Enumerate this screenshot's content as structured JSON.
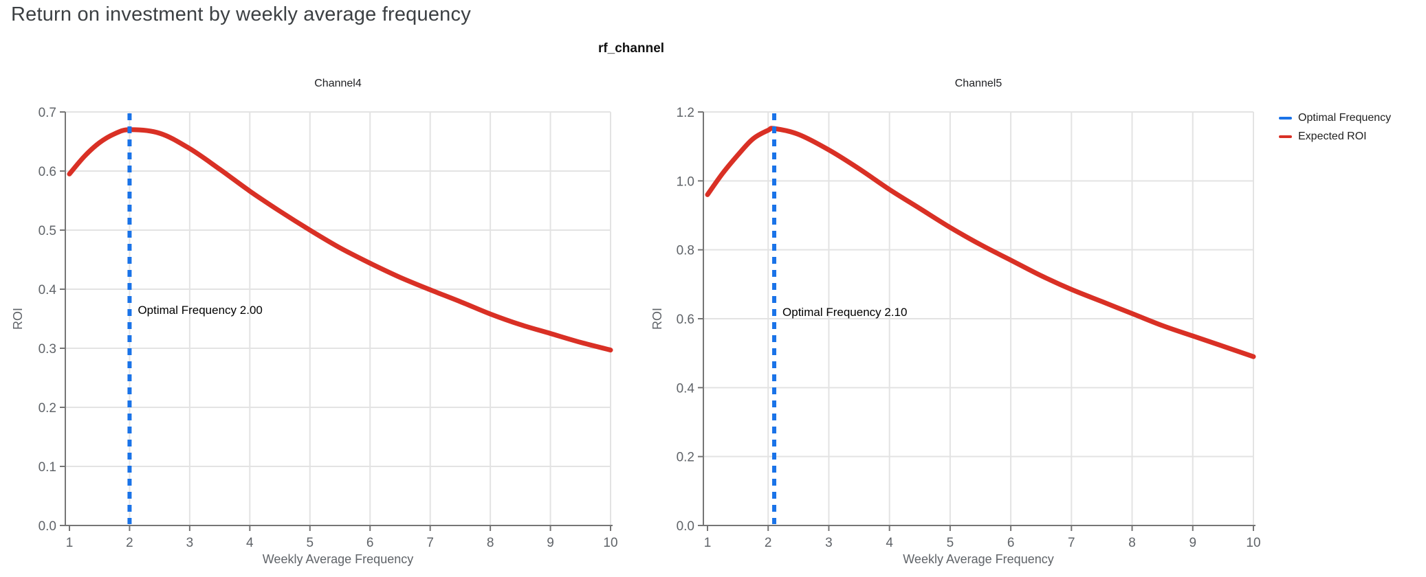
{
  "page": {
    "title": "Return on investment by weekly average frequency",
    "facet_title": "rf_channel"
  },
  "legend": {
    "items": [
      {
        "label": "Optimal Frequency",
        "color": "#1a73e8"
      },
      {
        "label": "Expected ROI",
        "color": "#d93025"
      }
    ]
  },
  "colors": {
    "curve_red": "#d93025",
    "optimal_blue": "#1a73e8",
    "grid": "#e3e3e3",
    "axis": "#757575",
    "tick_text": "#5f6368",
    "title_text": "#3c4043",
    "annotation_text": "#000000",
    "chart_title_text": "#202124"
  },
  "chart_data": [
    {
      "type": "line",
      "title": "Channel4",
      "xlabel": "Weekly Average Frequency",
      "ylabel": "ROI",
      "xlim": [
        1,
        10
      ],
      "ylim": [
        0,
        0.7
      ],
      "xticks": [
        1,
        2,
        3,
        4,
        5,
        6,
        7,
        8,
        9,
        10
      ],
      "ytick_labels": [
        "0.0",
        "0.1",
        "0.2",
        "0.3",
        "0.4",
        "0.5",
        "0.6",
        "0.7"
      ],
      "grid": true,
      "legend_position": "top-right-outside",
      "optimal_frequency": 2.0,
      "vline": {
        "x": 2.0,
        "name": "Optimal Frequency"
      },
      "annotation": {
        "text": "Optimal Frequency  2.00",
        "x": 2.0,
        "y": 0.365
      },
      "series": [
        {
          "name": "Expected ROI",
          "x": [
            1,
            1.25,
            1.5,
            1.75,
            2,
            2.5,
            3,
            3.5,
            4,
            4.5,
            5,
            5.5,
            6,
            6.5,
            7,
            7.5,
            8,
            8.5,
            9,
            9.5,
            10
          ],
          "y": [
            0.595,
            0.625,
            0.648,
            0.663,
            0.67,
            0.664,
            0.638,
            0.603,
            0.566,
            0.532,
            0.5,
            0.47,
            0.444,
            0.42,
            0.399,
            0.379,
            0.358,
            0.34,
            0.325,
            0.31,
            0.297
          ]
        }
      ]
    },
    {
      "type": "line",
      "title": "Channel5",
      "xlabel": "Weekly Average Frequency",
      "ylabel": "ROI",
      "xlim": [
        1,
        10
      ],
      "ylim": [
        0,
        1.2
      ],
      "xticks": [
        1,
        2,
        3,
        4,
        5,
        6,
        7,
        8,
        9,
        10
      ],
      "ytick_labels": [
        "0.0",
        "0.2",
        "0.4",
        "0.6",
        "0.8",
        "1.0",
        "1.2"
      ],
      "grid": true,
      "legend_position": "top-right-outside",
      "optimal_frequency": 2.1,
      "vline": {
        "x": 2.1,
        "name": "Optimal Frequency"
      },
      "annotation": {
        "text": "Optimal Frequency  2.10",
        "x": 2.1,
        "y": 0.62
      },
      "series": [
        {
          "name": "Expected ROI",
          "x": [
            1,
            1.25,
            1.5,
            1.75,
            2,
            2.1,
            2.5,
            3,
            3.5,
            4,
            4.5,
            5,
            5.5,
            6,
            6.5,
            7,
            7.5,
            8,
            8.5,
            9,
            9.5,
            10
          ],
          "y": [
            0.96,
            1.022,
            1.075,
            1.122,
            1.147,
            1.152,
            1.135,
            1.09,
            1.035,
            0.975,
            0.92,
            0.865,
            0.815,
            0.77,
            0.725,
            0.685,
            0.65,
            0.615,
            0.58,
            0.55,
            0.52,
            0.49
          ]
        }
      ]
    }
  ]
}
